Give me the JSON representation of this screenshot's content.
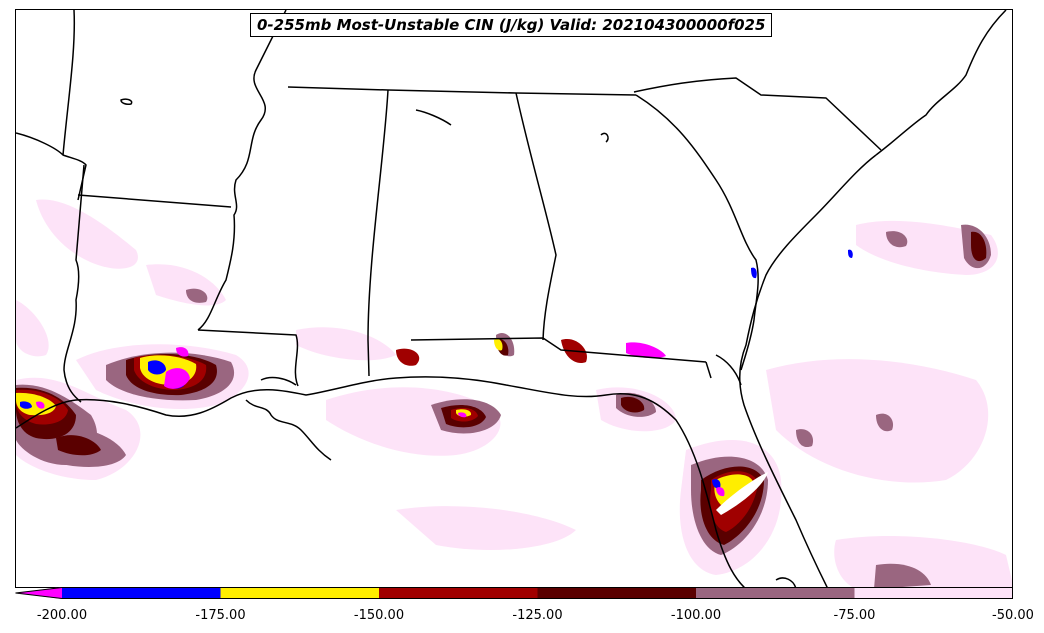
{
  "title": "0-255mb Most-Unstable CIN (J/kg) Valid: 202104300000f025",
  "colorbar": {
    "extend": "min",
    "levels": [
      {
        "from": "-inf",
        "to": -200,
        "color": "#ff00ff"
      },
      {
        "from": -200,
        "to": -175,
        "color": "#0000ff"
      },
      {
        "from": -175,
        "to": -150,
        "color": "#ffee00"
      },
      {
        "from": -150,
        "to": -125,
        "color": "#a00000"
      },
      {
        "from": -125,
        "to": -100,
        "color": "#5a0000"
      },
      {
        "from": -100,
        "to": -75,
        "color": "#9a6680"
      },
      {
        "from": -75,
        "to": -50,
        "color": "#fde3f8"
      }
    ],
    "tick_labels": [
      "-200.00",
      "-175.00",
      "-150.00",
      "-125.00",
      "-100.00",
      "-75.00",
      "-50.00"
    ]
  },
  "colors": {
    "background": "#ffffff",
    "boundaries": "#000000"
  }
}
